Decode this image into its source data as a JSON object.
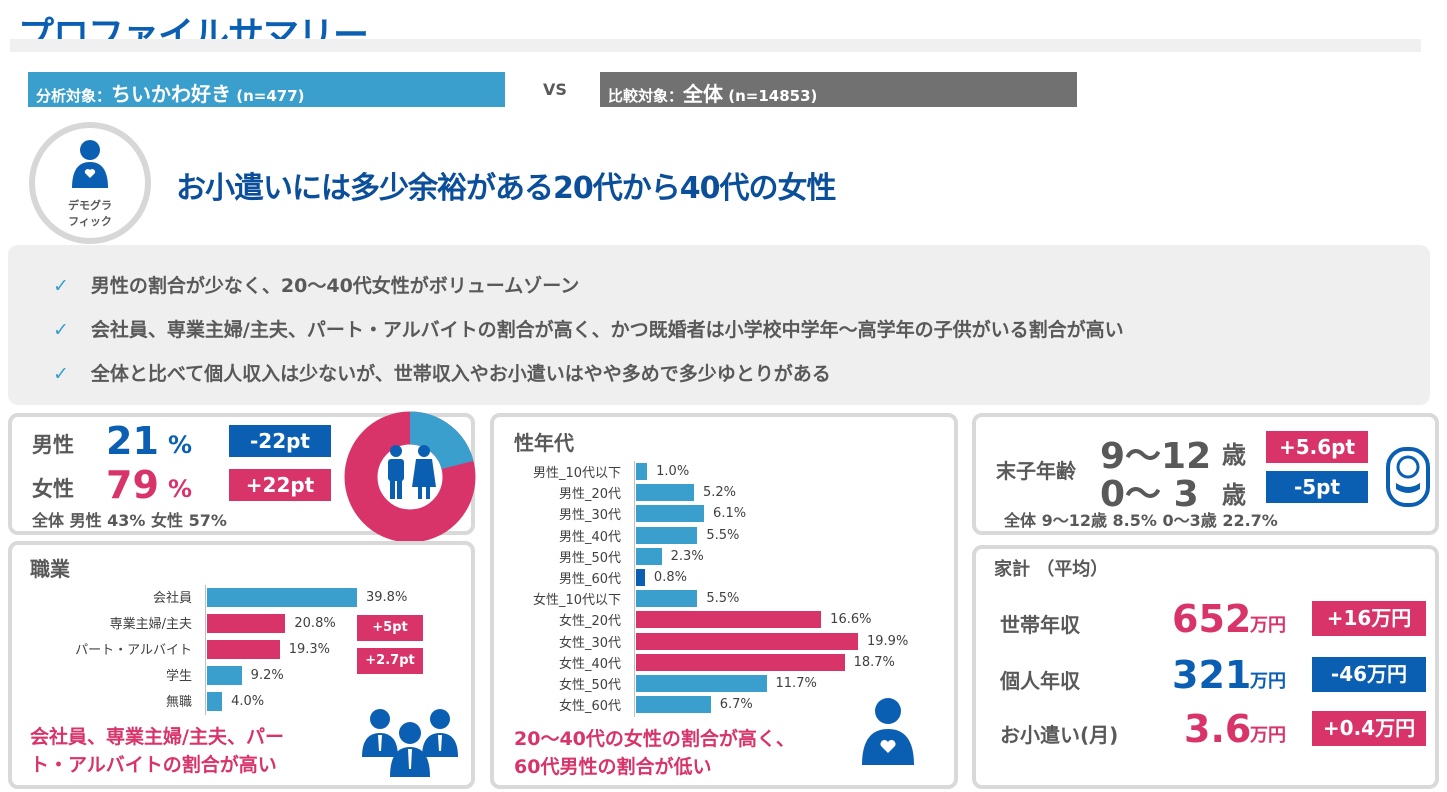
{
  "header": {
    "title": "プロファイルサマリー",
    "target_label": "分析対象：",
    "target_name": "ちいかわ好き",
    "target_n": " (n=477)",
    "vs": "VS",
    "compare_label": "比較対象：",
    "compare_name": "全体",
    "compare_n": " (n=14853)"
  },
  "demographic": {
    "label": "デモグラ\nフィック",
    "headline": "お小遣いには多少余裕がある20代から40代の女性"
  },
  "summary_points": [
    "男性の割合が少なく、20〜40代女性がボリュームゾーン",
    "会社員、専業主婦/主夫、パート・アルバイトの割合が高く、かつ既婚者は小学校中学年〜高学年の子供がいる割合が高い",
    "全体と比べて個人収入は少ないが、世帯収入やお小遣いはやや多めで多少ゆとりがある"
  ],
  "check_glyph": "✓",
  "gender": {
    "male_label": "男性",
    "male_value": "21",
    "female_label": "女性",
    "female_value": "79",
    "pct": "%",
    "male_diff": "-22pt",
    "female_diff": "+22pt",
    "overall": "全体 男性 43% 女性 57%",
    "male_share": 0.21,
    "colors": {
      "male": "#3a9fcc",
      "female": "#d8346a"
    }
  },
  "occupation": {
    "title": "職業",
    "items": [
      {
        "label": "会社員",
        "value": 39.8,
        "text": "39.8%"
      },
      {
        "label": "専業主婦/主夫",
        "value": 20.8,
        "text": "20.8%"
      },
      {
        "label": "パート・アルバイト",
        "value": 19.3,
        "text": "19.3%"
      },
      {
        "label": "学生",
        "value": 9.2,
        "text": "9.2%"
      },
      {
        "label": "無職",
        "value": 4.0,
        "text": "4.0%"
      }
    ],
    "diff_tags": [
      "+5pt",
      "+2.7pt"
    ],
    "note": "会社員、専業主婦/主夫、パー\nト・アルバイトの割合が高い"
  },
  "age_gender": {
    "title": "性年代",
    "items": [
      {
        "label": "男性_10代以下",
        "value": 1.0,
        "text": "1.0%",
        "color": "sky"
      },
      {
        "label": "男性_20代",
        "value": 5.2,
        "text": "5.2%",
        "color": "sky"
      },
      {
        "label": "男性_30代",
        "value": 6.1,
        "text": "6.1%",
        "color": "sky"
      },
      {
        "label": "男性_40代",
        "value": 5.5,
        "text": "5.5%",
        "color": "sky"
      },
      {
        "label": "男性_50代",
        "value": 2.3,
        "text": "2.3%",
        "color": "sky"
      },
      {
        "label": "男性_60代",
        "value": 0.8,
        "text": "0.8%",
        "color": "blue"
      },
      {
        "label": "女性_10代以下",
        "value": 5.5,
        "text": "5.5%",
        "color": "sky"
      },
      {
        "label": "女性_20代",
        "value": 16.6,
        "text": "16.6%",
        "color": "pink"
      },
      {
        "label": "女性_30代",
        "value": 19.9,
        "text": "19.9%",
        "color": "pink"
      },
      {
        "label": "女性_40代",
        "value": 18.7,
        "text": "18.7%",
        "color": "pink"
      },
      {
        "label": "女性_50代",
        "value": 11.7,
        "text": "11.7%",
        "color": "sky"
      },
      {
        "label": "女性_60代",
        "value": 6.7,
        "text": "6.7%",
        "color": "sky"
      }
    ],
    "note": "20〜40代の女性の割合が高く、\n60代男性の割合が低い"
  },
  "youngest_child": {
    "title": "末子年齢",
    "row1": "9〜12",
    "row2": "0〜 3",
    "unit": "歳",
    "diff1": "+5.6pt",
    "diff2": "-5pt",
    "overall": "全体 9〜12歳 8.5% 0〜3歳 22.7%"
  },
  "household": {
    "title": "家計 （平均）",
    "rows": [
      {
        "label": "世帯年収",
        "value": "652",
        "unit": "万円",
        "diff": "+16万円",
        "value_color": "pink",
        "diff_color": "pink"
      },
      {
        "label": "個人年収",
        "value": "321",
        "unit": "万円",
        "diff": "-46万円",
        "value_color": "blue",
        "diff_color": "blue"
      },
      {
        "label": "お小遣い(月)",
        "value": "3.6",
        "unit": "万円",
        "diff": "+0.4万円",
        "value_color": "pink",
        "diff_color": "pink"
      }
    ]
  },
  "icons": {
    "person": "person-icon",
    "couple": "couple-icon",
    "group": "business-group-icon",
    "baby": "baby-icon"
  }
}
